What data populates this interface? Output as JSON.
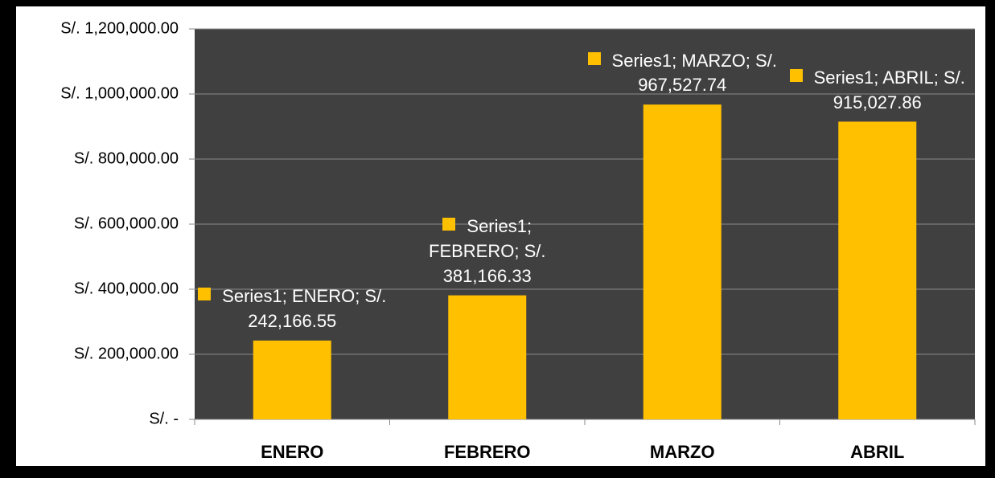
{
  "chart_data": {
    "type": "bar",
    "categories": [
      "ENERO",
      "FEBRERO",
      "MARZO",
      "ABRIL"
    ],
    "values": [
      242166.55,
      381166.33,
      967527.74,
      915027.86
    ],
    "value_labels": [
      "Series1; ENERO; S/. 242,166.55",
      "Series1; FEBRERO; S/. 381,166.33",
      "Series1; MARZO; S/. 967,527.74",
      "Series1; ABRIL; S/. 915,027.86"
    ],
    "color": "#ffc000",
    "ylim": [
      0,
      1200000
    ],
    "yticks": [
      {
        "value": 0,
        "label": "S/. -"
      },
      {
        "value": 200000,
        "label": "S/. 200,000.00"
      },
      {
        "value": 400000,
        "label": "S/. 400,000.00"
      },
      {
        "value": 600000,
        "label": "S/. 600,000.00"
      },
      {
        "value": 800000,
        "label": "S/. 800,000.00"
      },
      {
        "value": 1000000,
        "label": "S/. 1,000,000.00"
      },
      {
        "value": 1200000,
        "label": "S/. 1,200,000.00"
      }
    ],
    "grid": true
  }
}
